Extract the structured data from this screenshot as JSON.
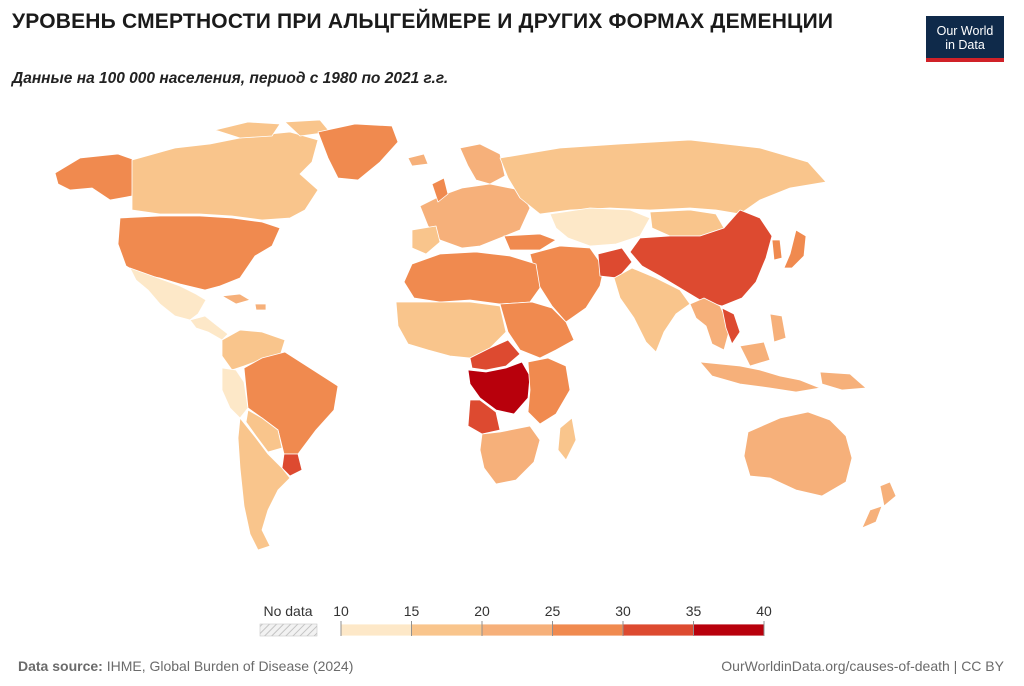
{
  "header": {
    "title": "УРОВЕНЬ СМЕРТНОСТИ ПРИ АЛЬЦГЕЙМЕРЕ И ДРУГИХ ФОРМАХ ДЕМЕНЦИИ",
    "subtitle": "Данные на 100 000 населения, период с 1980 по 2021 г.г.",
    "logo_line1": "Our World",
    "logo_line2": "in Data"
  },
  "legend": {
    "no_data_label": "No data",
    "ticks": [
      "10",
      "15",
      "20",
      "25",
      "30",
      "35",
      "40"
    ],
    "bins": [
      {
        "from": 10,
        "to": 15,
        "color": "#fde8c8"
      },
      {
        "from": 15,
        "to": 20,
        "color": "#f9c58c"
      },
      {
        "from": 20,
        "to": 25,
        "color": "#f6b07a"
      },
      {
        "from": 25,
        "to": 30,
        "color": "#f08a4f"
      },
      {
        "from": 30,
        "to": 35,
        "color": "#dd4a30"
      },
      {
        "from": 35,
        "to": 40,
        "color": "#b8000c"
      }
    ]
  },
  "map_data": {
    "metric": "death rate per 100,000",
    "regions": [
      {
        "region": "USA",
        "bin": "25-30"
      },
      {
        "region": "Canada",
        "bin": "15-20"
      },
      {
        "region": "Alaska",
        "bin": "25-30"
      },
      {
        "region": "Greenland",
        "bin": "25-30"
      },
      {
        "region": "Mexico",
        "bin": "10-15"
      },
      {
        "region": "Central America",
        "bin": "10-15"
      },
      {
        "region": "Colombia / Venezuela",
        "bin": "15-20"
      },
      {
        "region": "Peru",
        "bin": "10-15"
      },
      {
        "region": "Brazil",
        "bin": "25-30"
      },
      {
        "region": "Argentina / Chile",
        "bin": "15-20"
      },
      {
        "region": "Uruguay / Southern Brazil",
        "bin": "30-35"
      },
      {
        "region": "Europe",
        "bin": "20-25"
      },
      {
        "region": "Russia",
        "bin": "15-20"
      },
      {
        "region": "Kazakhstan / Central Asia",
        "bin": "10-15"
      },
      {
        "region": "Mongolia",
        "bin": "15-20"
      },
      {
        "region": "China",
        "bin": "30-35"
      },
      {
        "region": "Japan",
        "bin": "25-30"
      },
      {
        "region": "Korea",
        "bin": "25-30"
      },
      {
        "region": "India",
        "bin": "15-20"
      },
      {
        "region": "Afghanistan",
        "bin": "30-35"
      },
      {
        "region": "Iran / Middle East",
        "bin": "25-30"
      },
      {
        "region": "North Africa",
        "bin": "25-30"
      },
      {
        "region": "West Africa",
        "bin": "15-20"
      },
      {
        "region": "DR Congo",
        "bin": "35-40"
      },
      {
        "region": "Angola",
        "bin": "30-35"
      },
      {
        "region": "East Africa",
        "bin": "25-30"
      },
      {
        "region": "Southern Africa",
        "bin": "20-25"
      },
      {
        "region": "Southeast Asia",
        "bin": "20-25"
      },
      {
        "region": "Vietnam",
        "bin": "30-35"
      },
      {
        "region": "Indonesia",
        "bin": "20-25"
      },
      {
        "region": "Australia",
        "bin": "20-25"
      },
      {
        "region": "New Zealand",
        "bin": "20-25"
      }
    ]
  },
  "footer": {
    "source_label": "Data source:",
    "source_text": "IHME, Global Burden of Disease (2024)",
    "right_text": "OurWorldinData.org/causes-of-death | CC BY"
  }
}
